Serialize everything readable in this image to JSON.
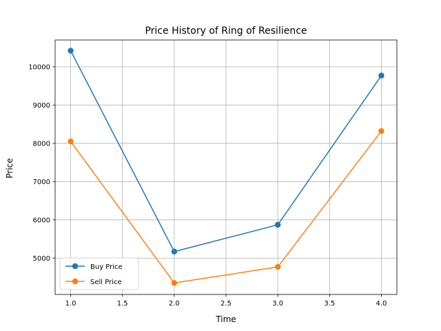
{
  "chart_data": {
    "type": "line",
    "title": "Price History of Ring of Resilience",
    "xlabel": "Time",
    "ylabel": "Price",
    "xlim": [
      0.85,
      4.15
    ],
    "ylim": [
      4050,
      10700
    ],
    "xticks": [
      "1.0",
      "1.5",
      "2.0",
      "2.5",
      "3.0",
      "3.5",
      "4.0"
    ],
    "yticks": [
      "5000",
      "6000",
      "7000",
      "8000",
      "9000",
      "10000"
    ],
    "grid": true,
    "legend_position": "lower-left",
    "x": [
      1,
      2,
      3,
      4
    ],
    "series": [
      {
        "name": "Buy Price",
        "color": "#1f77b4",
        "values": [
          10420,
          5170,
          5870,
          9770
        ]
      },
      {
        "name": "Sell Price",
        "color": "#ff7f0e",
        "values": [
          8050,
          4350,
          4770,
          8320
        ]
      }
    ]
  }
}
